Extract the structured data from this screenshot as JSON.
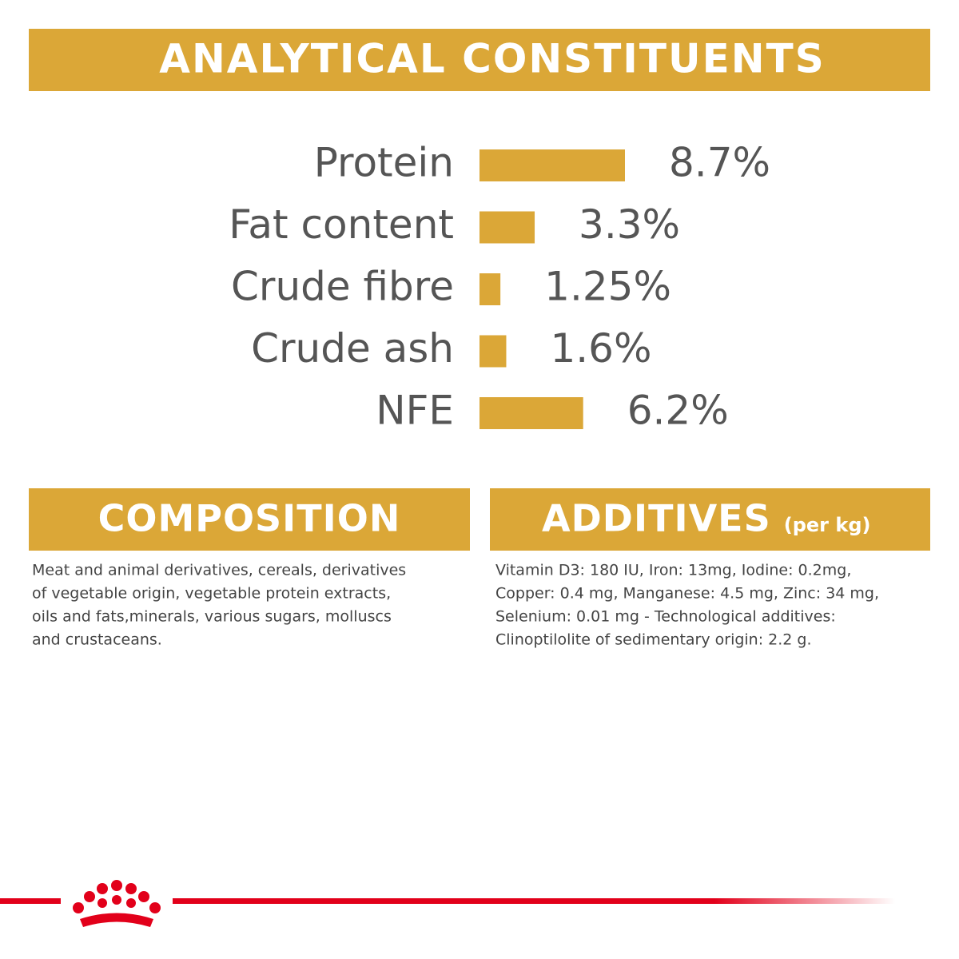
{
  "chart_data": {
    "type": "bar",
    "title": "ANALYTICAL CONSTITUENTS",
    "categories": [
      "Protein",
      "Fat content",
      "Crude fibre",
      "Crude ash",
      "NFE"
    ],
    "values": [
      8.7,
      3.3,
      1.25,
      1.6,
      6.2
    ],
    "value_labels": [
      "8.7%",
      "3.3%",
      "1.25%",
      "1.6%",
      "6.2%"
    ],
    "color": "#dba737"
  },
  "composition": {
    "title": "COMPOSITION",
    "lines": [
      "Meat and animal derivatives, cereals, derivatives",
      "of vegetable origin, vegetable protein extracts,",
      "oils and fats,minerals, various sugars, molluscs",
      "and crustaceans."
    ]
  },
  "additives": {
    "title": "ADDITIVES",
    "subtitle": "(per kg)",
    "lines": [
      "Vitamin D3: 180 IU, Iron: 13mg, Iodine: 0.2mg,",
      "Copper: 0.4 mg, Manganese: 4.5 mg, Zinc: 34 mg,",
      "Selenium: 0.01 mg - Technological additives:",
      "Clinoptilolite of sedimentary origin: 2.2 g."
    ]
  }
}
